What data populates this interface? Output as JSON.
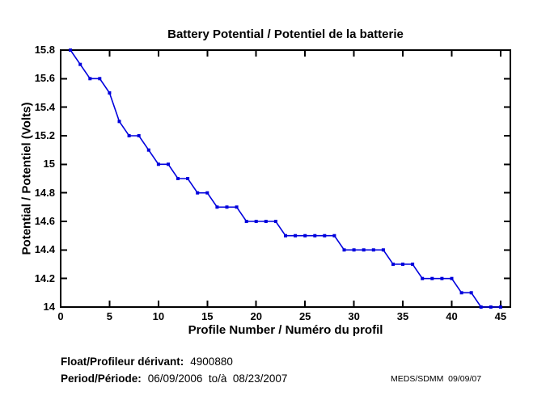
{
  "chart_data": {
    "type": "line",
    "title": "Battery Potential / Potentiel de la batterie",
    "xlabel": "Profile Number / Numéro du profil",
    "ylabel": "Potential / Potentiel (Volts)",
    "line_color": "#0000DD",
    "marker": "filled-square",
    "grid": false,
    "legend": "none",
    "xlim": [
      0,
      46
    ],
    "ylim": [
      14,
      15.8
    ],
    "xticks": [
      {
        "v": 0,
        "label": "0"
      },
      {
        "v": 5,
        "label": "5"
      },
      {
        "v": 10,
        "label": "10"
      },
      {
        "v": 15,
        "label": "15"
      },
      {
        "v": 20,
        "label": "20"
      },
      {
        "v": 25,
        "label": "25"
      },
      {
        "v": 30,
        "label": "30"
      },
      {
        "v": 35,
        "label": "35"
      },
      {
        "v": 40,
        "label": "40"
      },
      {
        "v": 45,
        "label": "45"
      }
    ],
    "yticks": [
      {
        "v": 15.8,
        "label": "15.8"
      },
      {
        "v": 15.6,
        "label": "15.6"
      },
      {
        "v": 15.4,
        "label": "15.4"
      },
      {
        "v": 15.2,
        "label": "15.2"
      },
      {
        "v": 15.0,
        "label": "15"
      },
      {
        "v": 14.8,
        "label": "14.8"
      },
      {
        "v": 14.6,
        "label": "14.6"
      },
      {
        "v": 14.4,
        "label": "14.4"
      },
      {
        "v": 14.2,
        "label": "14.2"
      },
      {
        "v": 14.0,
        "label": "14"
      }
    ],
    "x": [
      1,
      2,
      3,
      4,
      5,
      6,
      7,
      8,
      9,
      10,
      11,
      12,
      13,
      14,
      15,
      16,
      17,
      18,
      19,
      20,
      21,
      22,
      23,
      24,
      25,
      26,
      27,
      28,
      29,
      30,
      31,
      32,
      33,
      34,
      35,
      36,
      37,
      38,
      39,
      40,
      41,
      42,
      43,
      44,
      45
    ],
    "y": [
      15.8,
      15.7,
      15.6,
      15.6,
      15.5,
      15.3,
      15.2,
      15.2,
      15.1,
      15.0,
      15.0,
      14.9,
      14.9,
      14.8,
      14.8,
      14.7,
      14.7,
      14.7,
      14.6,
      14.6,
      14.6,
      14.6,
      14.5,
      14.5,
      14.5,
      14.5,
      14.5,
      14.5,
      14.4,
      14.4,
      14.4,
      14.4,
      14.4,
      14.3,
      14.3,
      14.3,
      14.2,
      14.2,
      14.2,
      14.2,
      14.1,
      14.1,
      14.0,
      14.0,
      14.0
    ]
  },
  "footer": {
    "float_label": "Float/Profileur dérivant:",
    "float_value": "4900880",
    "period_label": "Period/Période:",
    "period_value": "06/09/2006  to/à  08/23/2007",
    "credit": "MEDS/SDMM  09/09/07"
  }
}
